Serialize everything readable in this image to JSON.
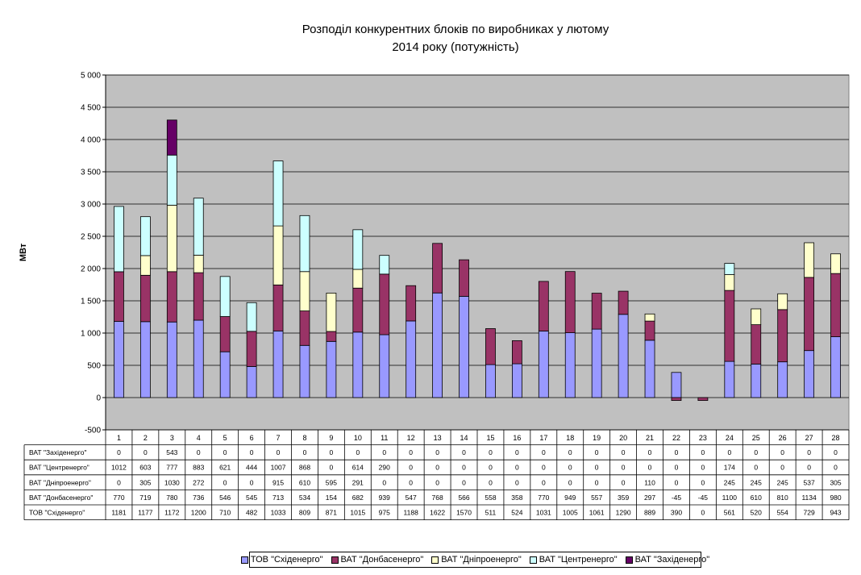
{
  "chart_data": {
    "type": "bar",
    "stacked": true,
    "title_line1": "Розподіл конкурентних блоків по виробниках у лютому",
    "title_line2": "2014 року (потужність)",
    "ylabel": "МВт",
    "xlabel": "",
    "ylim": [
      -500,
      5000
    ],
    "y_ticks": [
      -500,
      0,
      500,
      1000,
      1500,
      2000,
      2500,
      3000,
      3500,
      4000,
      4500,
      5000
    ],
    "y_tick_labels": [
      "-500",
      "0",
      "500",
      "1 000",
      "1 500",
      "2 000",
      "2 500",
      "3 000",
      "3 500",
      "4 000",
      "4 500",
      "5 000"
    ],
    "grid": true,
    "legend_position": "bottom",
    "categories": [
      "1",
      "2",
      "3",
      "4",
      "5",
      "6",
      "7",
      "8",
      "9",
      "10",
      "11",
      "12",
      "13",
      "14",
      "15",
      "16",
      "17",
      "18",
      "19",
      "20",
      "21",
      "22",
      "23",
      "24",
      "25",
      "26",
      "27",
      "28"
    ],
    "series": [
      {
        "name": "ТОВ \"Східенерго\"",
        "color": "#9999ff",
        "values": [
          1181,
          1177,
          1172,
          1200,
          710,
          482,
          1033,
          809,
          871,
          1015,
          975,
          1188,
          1622,
          1570,
          511,
          524,
          1031,
          1005,
          1061,
          1290,
          889,
          390,
          0,
          561,
          520,
          554,
          729,
          943
        ]
      },
      {
        "name": "ВАТ \"Донбасенерго\"",
        "color": "#993366",
        "values": [
          770,
          719,
          780,
          736,
          546,
          545,
          713,
          534,
          154,
          682,
          939,
          547,
          768,
          566,
          558,
          358,
          770,
          949,
          557,
          359,
          297,
          -45,
          -45,
          1100,
          610,
          810,
          1134,
          980
        ]
      },
      {
        "name": "ВАТ \"Дніпроенерго\"",
        "color": "#ffffcc",
        "values": [
          0,
          305,
          1030,
          272,
          0,
          0,
          915,
          610,
          595,
          291,
          0,
          0,
          0,
          0,
          0,
          0,
          0,
          0,
          0,
          0,
          110,
          0,
          0,
          245,
          245,
          245,
          537,
          305
        ]
      },
      {
        "name": "ВАТ \"Центренерго\"",
        "color": "#ccffff",
        "values": [
          1012,
          603,
          777,
          883,
          621,
          444,
          1007,
          868,
          0,
          614,
          290,
          0,
          0,
          0,
          0,
          0,
          0,
          0,
          0,
          0,
          0,
          0,
          0,
          174,
          0,
          0,
          0,
          0
        ]
      },
      {
        "name": "ВАТ \"Західенерго\"",
        "color": "#660066",
        "values": [
          0,
          0,
          543,
          0,
          0,
          0,
          0,
          0,
          0,
          0,
          0,
          0,
          0,
          0,
          0,
          0,
          0,
          0,
          0,
          0,
          0,
          0,
          0,
          0,
          0,
          0,
          0,
          0
        ]
      }
    ]
  }
}
